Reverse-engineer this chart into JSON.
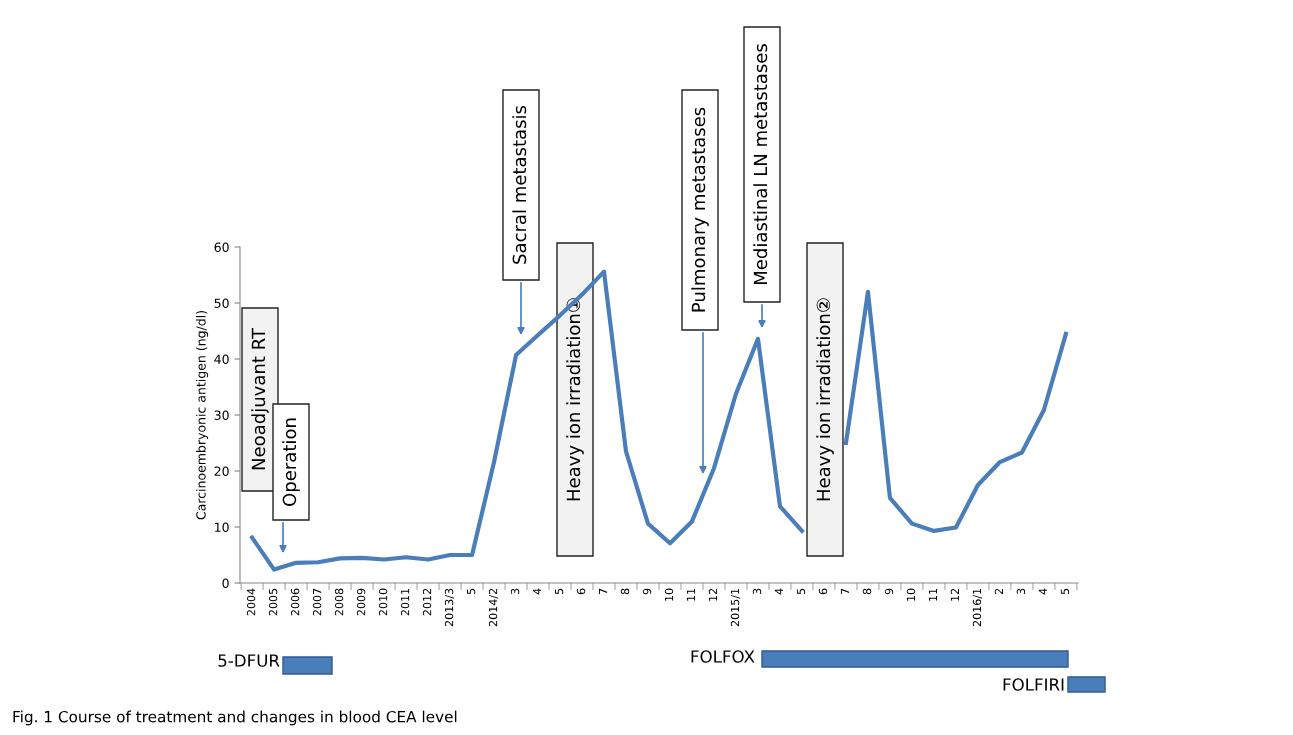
{
  "chart_data": {
    "type": "line",
    "ylabel": "Carcinoembryonic antigen (ng/dl)",
    "categories": [
      "2004",
      "2005",
      "2006",
      "2007",
      "2008",
      "2009",
      "2010",
      "2011",
      "2012",
      "2013/3",
      "5",
      "2014/2",
      "3",
      "4",
      "5",
      "6",
      "7",
      "8",
      "9",
      "10",
      "11",
      "12",
      "2015/1",
      "3",
      "4",
      "5",
      "6",
      "7",
      "8",
      "9",
      "10",
      "11",
      "12",
      "2016/1",
      "2",
      "3",
      "4",
      "5"
    ],
    "series": [
      {
        "color": "#4a7ebb",
        "values": [
          8.1,
          2.4,
          3.6,
          3.7,
          4.4,
          4.5,
          4.2,
          4.6,
          4.2,
          5.0,
          5.0,
          21.6,
          40.7,
          44.3,
          47.8,
          51.5,
          55.6,
          23.5,
          10.6,
          7.1,
          11.0,
          20.5,
          33.8,
          43.6,
          13.7,
          9.3,
          null,
          25,
          52.0,
          15.2,
          10.6,
          9.3,
          9.9,
          17.5,
          21.6,
          23.3,
          30.9,
          44.5
        ]
      }
    ],
    "ylim": [
      0,
      60
    ],
    "yticks": [
      0,
      10,
      20,
      30,
      40,
      50,
      60
    ],
    "grid": false,
    "legend": false,
    "marker": "none",
    "line_style": "solid",
    "annotations": [
      "Neoadjuvant RT",
      "Operation",
      "Sacral metastasis",
      "Heavy ion irradiation①",
      "Pulmonary metastases",
      "Mediastinal LN metastases",
      "Heavy ion irradiation②",
      "5-DFUR",
      "FOLFOX",
      "FOLFIRI",
      "Fig. 1 Course of treatment and changes in blood CEA level"
    ]
  }
}
